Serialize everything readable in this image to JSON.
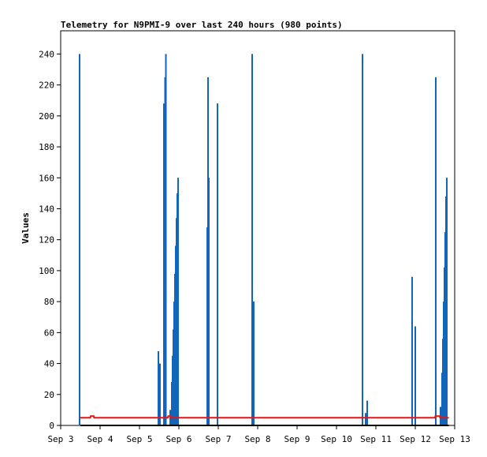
{
  "chart_data": {
    "type": "line",
    "title": "Telemetry for N9PMI-9 over last 240 hours (980 points)",
    "ylabel": "Values",
    "xlabel": "",
    "ylim": [
      0,
      255
    ],
    "xlim": [
      0,
      10
    ],
    "x_ticks": [
      {
        "value": 0,
        "label": "Sep 3"
      },
      {
        "value": 1,
        "label": "Sep 4"
      },
      {
        "value": 2,
        "label": "Sep 5"
      },
      {
        "value": 3,
        "label": "Sep 6"
      },
      {
        "value": 4,
        "label": "Sep 7"
      },
      {
        "value": 5,
        "label": "Sep 8"
      },
      {
        "value": 6,
        "label": "Sep 9"
      },
      {
        "value": 7,
        "label": "Sep 10"
      },
      {
        "value": 8,
        "label": "Sep 11"
      },
      {
        "value": 9,
        "label": "Sep 12"
      },
      {
        "value": 10,
        "label": "Sep 13"
      }
    ],
    "y_ticks": [
      0,
      20,
      40,
      60,
      80,
      100,
      120,
      140,
      160,
      180,
      200,
      220,
      240
    ],
    "grid": false,
    "legend": "none",
    "series": [
      {
        "color": "#1166bb",
        "style": "spikes",
        "points": [
          [
            0.48,
            240
          ],
          [
            2.48,
            48
          ],
          [
            2.52,
            40
          ],
          [
            2.62,
            208
          ],
          [
            2.65,
            225
          ],
          [
            2.67,
            240
          ],
          [
            2.78,
            10
          ],
          [
            2.82,
            28
          ],
          [
            2.84,
            45
          ],
          [
            2.86,
            62
          ],
          [
            2.88,
            80
          ],
          [
            2.9,
            98
          ],
          [
            2.92,
            116
          ],
          [
            2.94,
            134
          ],
          [
            2.96,
            150
          ],
          [
            2.98,
            160
          ],
          [
            3.72,
            128
          ],
          [
            3.74,
            225
          ],
          [
            3.76,
            160
          ],
          [
            3.98,
            208
          ],
          [
            4.86,
            240
          ],
          [
            4.9,
            80
          ],
          [
            7.66,
            240
          ],
          [
            7.74,
            8
          ],
          [
            7.78,
            16
          ],
          [
            8.92,
            96
          ],
          [
            9.0,
            64
          ],
          [
            9.52,
            225
          ],
          [
            9.64,
            12
          ],
          [
            9.68,
            34
          ],
          [
            9.7,
            56
          ],
          [
            9.72,
            80
          ],
          [
            9.74,
            102
          ],
          [
            9.76,
            125
          ],
          [
            9.78,
            148
          ],
          [
            9.8,
            160
          ]
        ]
      },
      {
        "color": "#ee1111",
        "style": "line",
        "points": [
          [
            0.5,
            5
          ],
          [
            0.75,
            5
          ],
          [
            0.76,
            6
          ],
          [
            0.84,
            6
          ],
          [
            0.85,
            5
          ],
          [
            2.72,
            5
          ],
          [
            2.73,
            6
          ],
          [
            2.78,
            6
          ],
          [
            2.79,
            5
          ],
          [
            9.5,
            5
          ],
          [
            9.51,
            6
          ],
          [
            9.62,
            6
          ],
          [
            9.63,
            5
          ],
          [
            9.85,
            5
          ]
        ]
      },
      {
        "color": "#000000",
        "style": "line",
        "points": [
          [
            0.5,
            0
          ],
          [
            9.85,
            0
          ]
        ]
      }
    ]
  }
}
